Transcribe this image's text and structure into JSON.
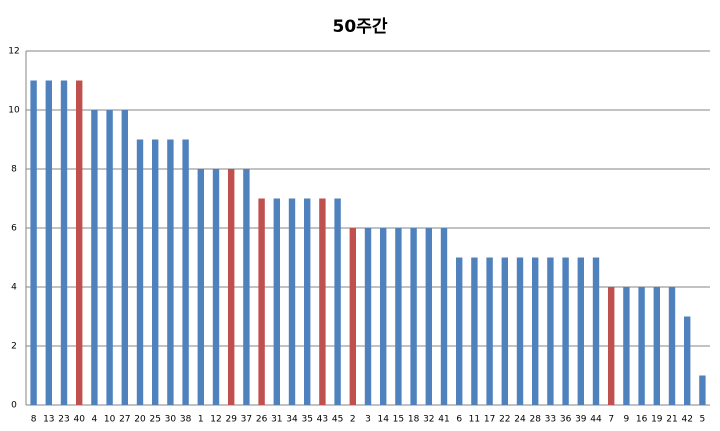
{
  "chart_data": {
    "type": "bar",
    "title": "50주간",
    "categories": [
      "8",
      "13",
      "23",
      "40",
      "4",
      "10",
      "27",
      "20",
      "25",
      "30",
      "38",
      "1",
      "12",
      "29",
      "37",
      "26",
      "31",
      "34",
      "35",
      "43",
      "45",
      "2",
      "3",
      "14",
      "15",
      "18",
      "32",
      "41",
      "6",
      "11",
      "17",
      "22",
      "24",
      "28",
      "33",
      "36",
      "39",
      "44",
      "7",
      "9",
      "16",
      "19",
      "21",
      "42",
      "5"
    ],
    "values": [
      11,
      11,
      11,
      11,
      10,
      10,
      10,
      9,
      9,
      9,
      9,
      8,
      8,
      8,
      8,
      7,
      7,
      7,
      7,
      7,
      7,
      6,
      6,
      6,
      6,
      6,
      6,
      6,
      5,
      5,
      5,
      5,
      5,
      5,
      5,
      5,
      5,
      5,
      4,
      4,
      4,
      4,
      4,
      3,
      1
    ],
    "colors": [
      "#4f81bd",
      "#4f81bd",
      "#4f81bd",
      "#c0504d",
      "#4f81bd",
      "#4f81bd",
      "#4f81bd",
      "#4f81bd",
      "#4f81bd",
      "#4f81bd",
      "#4f81bd",
      "#4f81bd",
      "#4f81bd",
      "#c0504d",
      "#4f81bd",
      "#c0504d",
      "#4f81bd",
      "#4f81bd",
      "#4f81bd",
      "#c0504d",
      "#4f81bd",
      "#c0504d",
      "#4f81bd",
      "#4f81bd",
      "#4f81bd",
      "#4f81bd",
      "#4f81bd",
      "#4f81bd",
      "#4f81bd",
      "#4f81bd",
      "#4f81bd",
      "#4f81bd",
      "#4f81bd",
      "#4f81bd",
      "#4f81bd",
      "#4f81bd",
      "#4f81bd",
      "#4f81bd",
      "#c0504d",
      "#4f81bd",
      "#4f81bd",
      "#4f81bd",
      "#4f81bd",
      "#4f81bd",
      "#4f81bd"
    ],
    "ylim": [
      0,
      12
    ],
    "yticks": [
      0,
      2,
      4,
      6,
      8,
      10,
      12
    ],
    "grid": true
  }
}
